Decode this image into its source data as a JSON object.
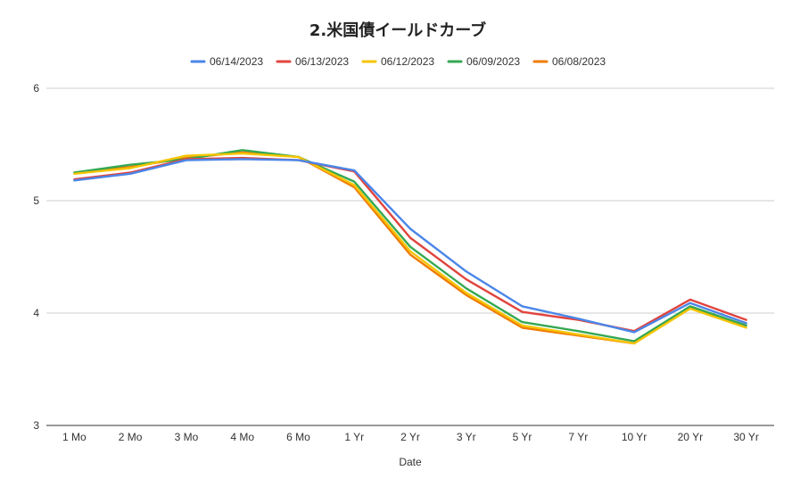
{
  "chart_data": {
    "type": "line",
    "title": "2.米国債イールドカーブ",
    "xlabel": "Date",
    "ylabel": "",
    "ylim": [
      3,
      6
    ],
    "yticks": [
      3,
      4,
      5,
      6
    ],
    "grid": true,
    "legend_position": "top",
    "categories": [
      "1 Mo",
      "2 Mo",
      "3 Mo",
      "4 Mo",
      "6 Mo",
      "1 Yr",
      "2 Yr",
      "3 Yr",
      "5 Yr",
      "7 Yr",
      "10 Yr",
      "20 Yr",
      "30 Yr"
    ],
    "series": [
      {
        "name": "06/14/2023",
        "color": "#4a86e8",
        "values": [
          5.18,
          5.24,
          5.36,
          5.37,
          5.36,
          5.27,
          4.75,
          4.37,
          4.06,
          3.95,
          3.83,
          4.09,
          3.91
        ]
      },
      {
        "name": "06/13/2023",
        "color": "#e0443e",
        "values": [
          5.19,
          5.25,
          5.37,
          5.38,
          5.36,
          5.26,
          4.67,
          4.3,
          4.01,
          3.94,
          3.84,
          4.12,
          3.94
        ]
      },
      {
        "name": "06/12/2023",
        "color": "#f5c400",
        "values": [
          5.24,
          5.29,
          5.4,
          5.42,
          5.39,
          5.14,
          4.55,
          4.18,
          3.89,
          3.81,
          3.73,
          4.04,
          3.87
        ]
      },
      {
        "name": "06/09/2023",
        "color": "#34a853",
        "values": [
          5.25,
          5.32,
          5.37,
          5.45,
          5.39,
          5.17,
          4.59,
          4.22,
          3.92,
          3.84,
          3.75,
          4.06,
          3.89
        ]
      },
      {
        "name": "06/08/2023",
        "color": "#f07c00",
        "values": [
          5.25,
          5.3,
          5.38,
          5.43,
          5.39,
          5.12,
          4.52,
          4.16,
          3.87,
          3.8,
          3.73,
          4.05,
          3.89
        ]
      }
    ]
  }
}
